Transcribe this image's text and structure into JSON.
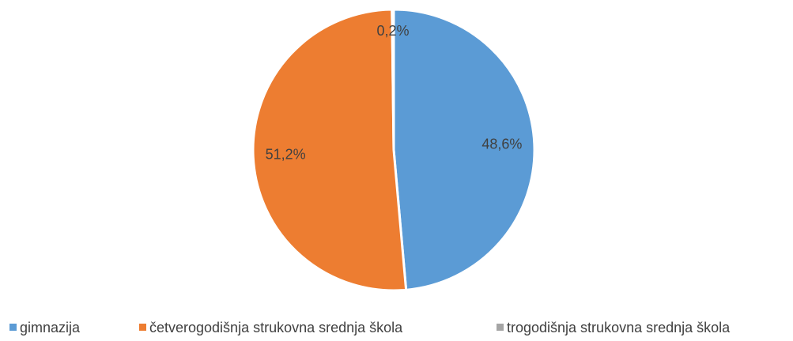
{
  "chart_data": {
    "type": "pie",
    "categories": [
      "gimnazija",
      "četverogodišnja strukovna srednja škola",
      "trogodišnja strukovna srednja škola"
    ],
    "values": [
      48.6,
      51.2,
      0.2
    ],
    "value_labels": [
      "48,6%",
      "51,2%",
      "0,2%"
    ],
    "colors": [
      "#5b9bd5",
      "#ed7d31",
      "#a5a5a5"
    ],
    "legend": "bottom"
  }
}
